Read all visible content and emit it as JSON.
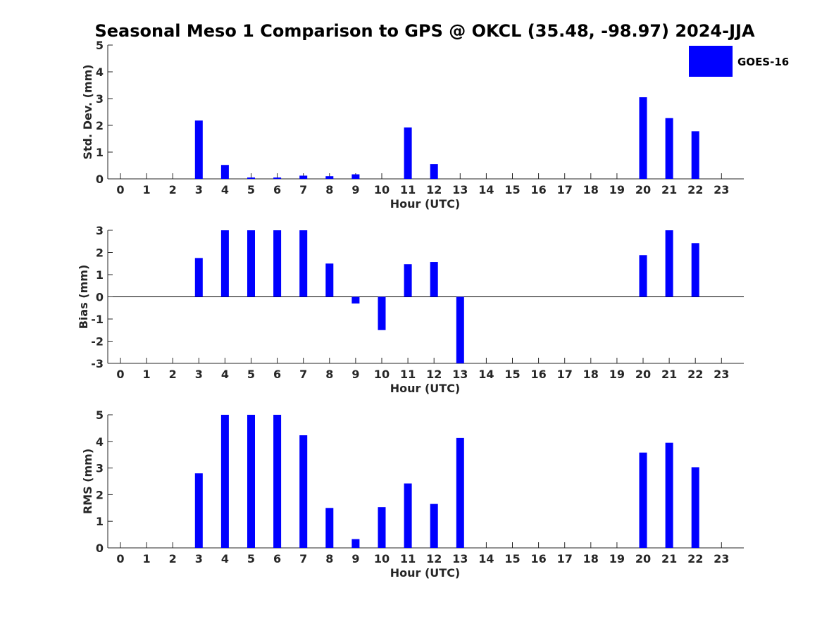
{
  "title": "Seasonal Meso 1 Comparison to GPS @ OKCL (35.48, -98.97) 2024-JJA",
  "legend": {
    "label": "GOES-16",
    "color": "#0000FF",
    "placement": "top-right"
  },
  "chart_data": [
    {
      "type": "bar",
      "xlabel": "Hour (UTC)",
      "ylabel": "Std. Dev. (mm)",
      "ylim": [
        0,
        5
      ],
      "yticks": [
        "0",
        "1",
        "2",
        "3",
        "4",
        "5"
      ],
      "categories": [
        "0",
        "1",
        "2",
        "3",
        "4",
        "5",
        "6",
        "7",
        "8",
        "9",
        "10",
        "11",
        "12",
        "13",
        "14",
        "15",
        "16",
        "17",
        "18",
        "19",
        "20",
        "21",
        "22",
        "23"
      ],
      "series": [
        {
          "name": "GOES-16",
          "color": "#0000FF",
          "values": [
            null,
            null,
            null,
            2.18,
            0.52,
            0.05,
            0.05,
            0.12,
            0.1,
            0.17,
            null,
            1.92,
            0.55,
            null,
            null,
            null,
            null,
            null,
            null,
            null,
            3.05,
            2.27,
            1.78,
            null
          ]
        }
      ]
    },
    {
      "type": "bar",
      "xlabel": "Hour (UTC)",
      "ylabel": "Bias (mm)",
      "ylim": [
        -3,
        3
      ],
      "yticks": [
        "-3",
        "-2",
        "-1",
        "0",
        "1",
        "2",
        "3"
      ],
      "categories": [
        "0",
        "1",
        "2",
        "3",
        "4",
        "5",
        "6",
        "7",
        "8",
        "9",
        "10",
        "11",
        "12",
        "13",
        "14",
        "15",
        "16",
        "17",
        "18",
        "19",
        "20",
        "21",
        "22",
        "23"
      ],
      "series": [
        {
          "name": "GOES-16",
          "color": "#0000FF",
          "values": [
            null,
            null,
            null,
            1.75,
            3.0,
            3.0,
            3.0,
            3.0,
            1.5,
            -0.3,
            -1.5,
            1.47,
            1.57,
            -3.0,
            null,
            null,
            null,
            null,
            null,
            null,
            1.88,
            3.0,
            2.42,
            null
          ]
        }
      ]
    },
    {
      "type": "bar",
      "xlabel": "Hour (UTC)",
      "ylabel": "RMS (mm)",
      "ylim": [
        0,
        5
      ],
      "yticks": [
        "0",
        "1",
        "2",
        "3",
        "4",
        "5"
      ],
      "categories": [
        "0",
        "1",
        "2",
        "3",
        "4",
        "5",
        "6",
        "7",
        "8",
        "9",
        "10",
        "11",
        "12",
        "13",
        "14",
        "15",
        "16",
        "17",
        "18",
        "19",
        "20",
        "21",
        "22",
        "23"
      ],
      "series": [
        {
          "name": "GOES-16",
          "color": "#0000FF",
          "values": [
            null,
            null,
            null,
            2.8,
            5.0,
            5.0,
            5.0,
            4.23,
            1.5,
            0.33,
            1.53,
            2.42,
            1.65,
            4.13,
            null,
            null,
            null,
            null,
            null,
            null,
            3.58,
            3.95,
            3.03,
            null
          ]
        }
      ]
    }
  ]
}
